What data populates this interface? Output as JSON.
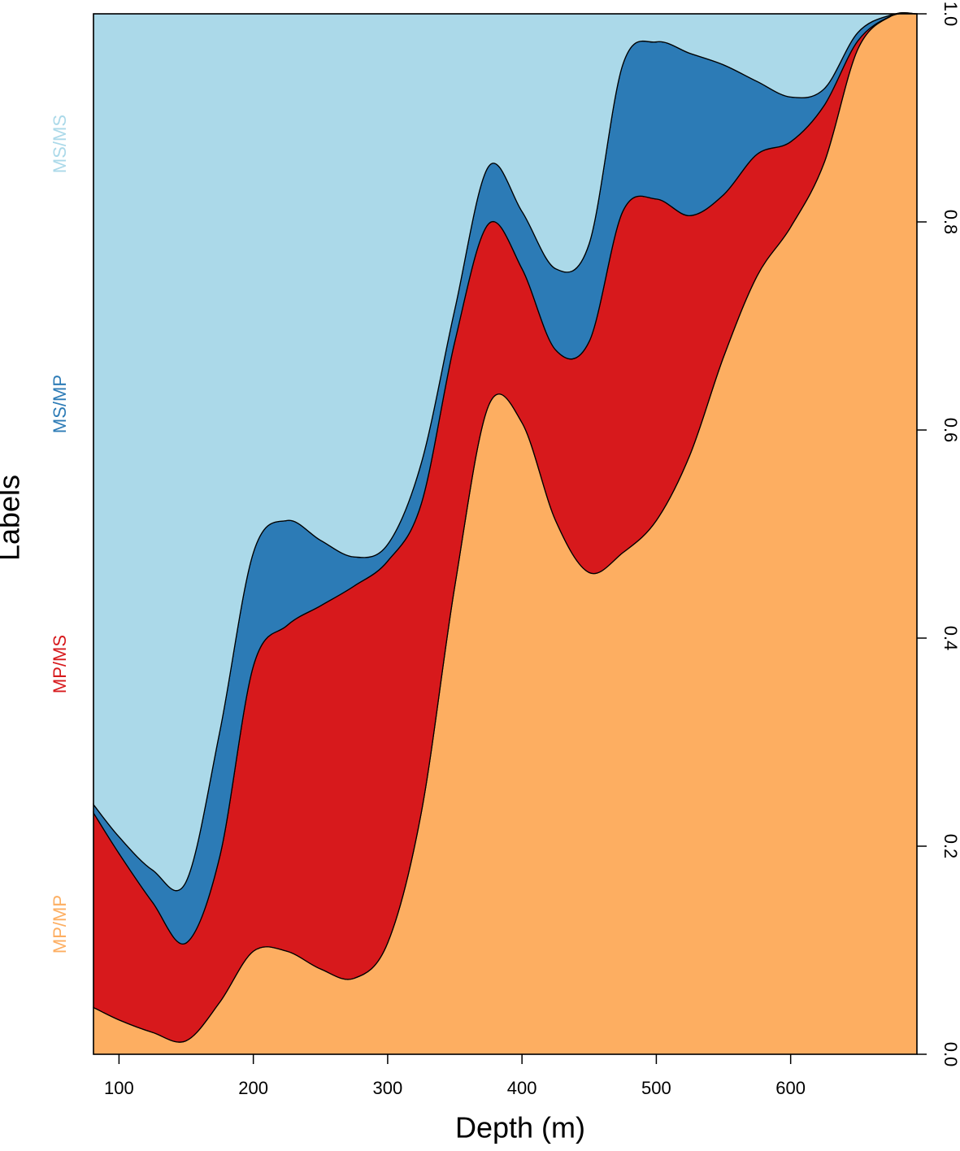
{
  "chart_data": {
    "type": "stacked-area",
    "x_label": "Depth (m)",
    "y_label": "Labels",
    "x": [
      81,
      100,
      125,
      150,
      175,
      200,
      225,
      250,
      275,
      300,
      325,
      350,
      375,
      400,
      425,
      450,
      475,
      500,
      525,
      550,
      575,
      600,
      625,
      650,
      675,
      694
    ],
    "series": [
      {
        "name": "MP/MP",
        "color": "#fdae61",
        "values": [
          0.045,
          0.033,
          0.021,
          0.013,
          0.05,
          0.099,
          0.099,
          0.082,
          0.073,
          0.107,
          0.232,
          0.45,
          0.623,
          0.607,
          0.513,
          0.463,
          0.482,
          0.513,
          0.576,
          0.67,
          0.748,
          0.795,
          0.857,
          0.966,
          0.998,
          1.0
        ]
      },
      {
        "name": "MP/MS",
        "color": "#d7191c",
        "values": [
          0.187,
          0.16,
          0.125,
          0.094,
          0.14,
          0.274,
          0.313,
          0.349,
          0.377,
          0.367,
          0.297,
          0.235,
          0.175,
          0.148,
          0.164,
          0.222,
          0.328,
          0.309,
          0.23,
          0.156,
          0.117,
          0.082,
          0.055,
          0.008,
          0,
          0
        ]
      },
      {
        "name": "MS/MP",
        "color": "#2c7bb6",
        "values": [
          0.008,
          0.016,
          0.031,
          0.059,
          0.12,
          0.109,
          0.101,
          0.063,
          0.028,
          0.016,
          0.039,
          0.031,
          0.055,
          0.055,
          0.078,
          0.094,
          0.141,
          0.151,
          0.156,
          0.125,
          0.07,
          0.043,
          0.016,
          0.008,
          0.001,
          0
        ]
      },
      {
        "name": "MS/MS",
        "color": "#abd9e9",
        "values": [
          0.76,
          0.791,
          0.823,
          0.834,
          0.69,
          0.518,
          0.487,
          0.506,
          0.522,
          0.51,
          0.432,
          0.284,
          0.147,
          0.19,
          0.245,
          0.221,
          0.049,
          0.027,
          0.038,
          0.049,
          0.065,
          0.08,
          0.072,
          0.018,
          0.001,
          0
        ]
      }
    ],
    "xlim": [
      81,
      694
    ],
    "xticks": [
      100,
      200,
      300,
      400,
      500,
      600
    ],
    "ylim": [
      0,
      1
    ],
    "yticks": [
      {
        "value": 0,
        "label": "0.0"
      },
      0.2,
      0.4,
      0.6,
      0.8,
      {
        "value": 1,
        "label": "1.0"
      }
    ]
  }
}
